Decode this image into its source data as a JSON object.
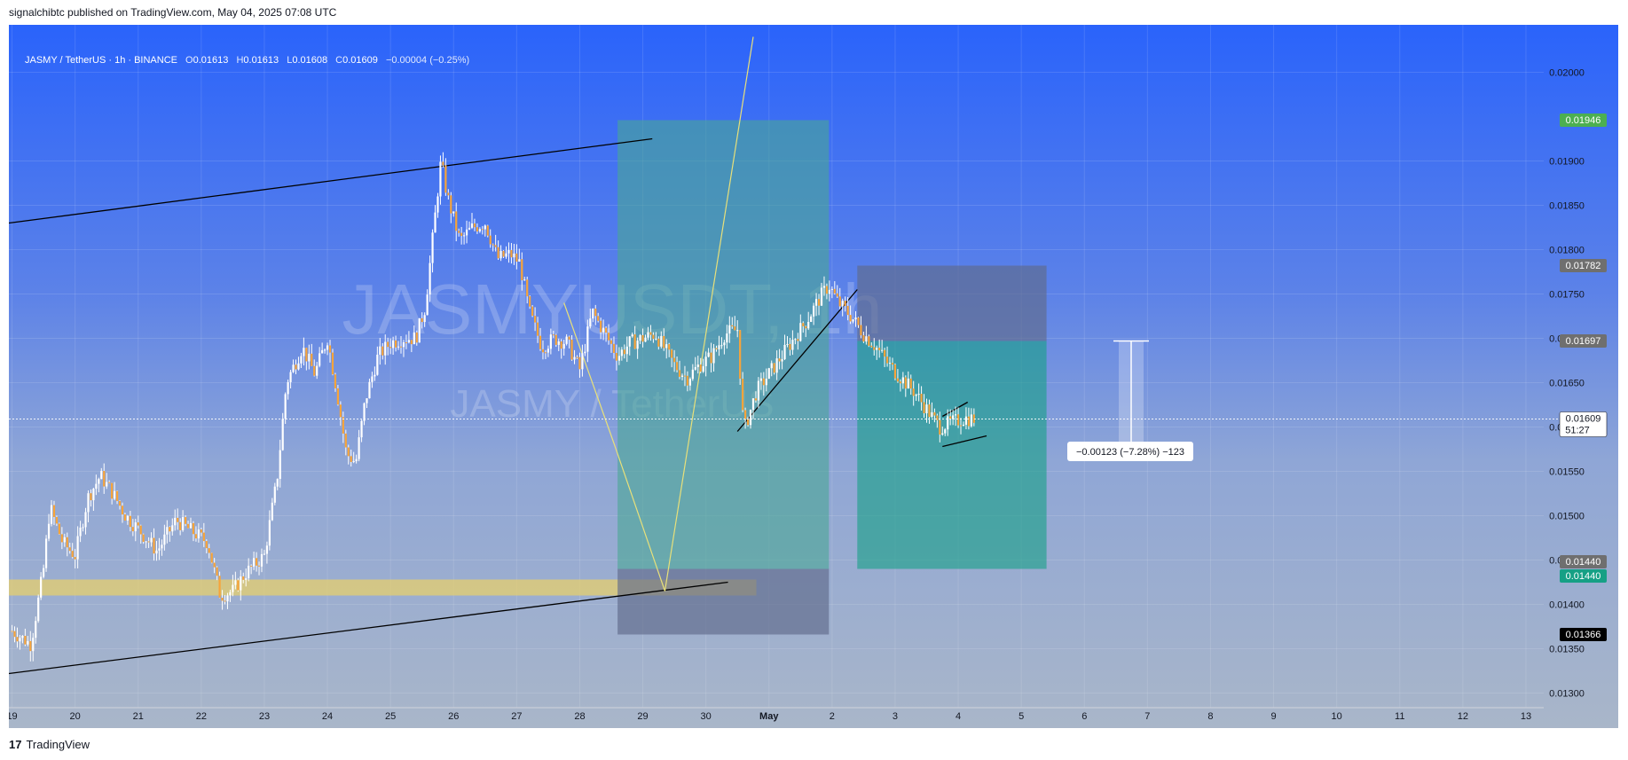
{
  "header": {
    "published": "signalchibtc published on TradingView.com, May 04, 2025 07:08 UTC"
  },
  "legend": {
    "symbol": "JASMY / TetherUS · 1h · BINANCE",
    "o_label": "O",
    "o_value": "0.01613",
    "h_label": "H",
    "h_value": "0.01613",
    "l_label": "L",
    "l_value": "0.01608",
    "c_label": "C",
    "c_value": "0.01609",
    "change": "−0.00004 (−0.25%)"
  },
  "watermark": {
    "line1": "JASMYUSDT, 1h",
    "line2": "JASMY / TetherUS"
  },
  "footer": {
    "logo": "17",
    "brand": "TradingView"
  },
  "colors": {
    "candle": "#f7a43a",
    "wick": "#ffffff",
    "badge_green": "#4caf50",
    "badge_gray": "#6f6f6f",
    "badge_teal": "#16a085",
    "badge_black": "#000000",
    "badge_white": "#ffffff",
    "support_zone": "#e6cf6d",
    "long_zone": "#4aa795",
    "dark_zone": "#606a8a",
    "target_zone": "#16a085",
    "zigzag": "#e8e07a",
    "trendline": "#000000"
  },
  "measure_label": "−0.00123 (−7.28%) −123",
  "chart_data": {
    "type": "candlestick",
    "symbol": "JASMY / TetherUS",
    "interval": "1h",
    "exchange": "BINANCE",
    "y_ticks": [
      "0.01300",
      "0.01350",
      "0.01400",
      "0.01450",
      "0.01500",
      "0.01550",
      "0.01600",
      "0.01650",
      "0.01700",
      "0.01750",
      "0.01800",
      "0.01850",
      "0.01900",
      "0.02000"
    ],
    "y_range": [
      0.01275,
      0.0203
    ],
    "x_ticks": [
      "19",
      "20",
      "21",
      "22",
      "23",
      "24",
      "25",
      "26",
      "27",
      "28",
      "29",
      "30",
      "May",
      "2",
      "3",
      "4",
      "5",
      "6",
      "7",
      "8",
      "9",
      "10",
      "11",
      "12",
      "13"
    ],
    "x_range_days": [
      -0.05,
      24.8
    ],
    "price_badges": [
      {
        "value": "0.01946",
        "style": "green"
      },
      {
        "value": "0.01782",
        "style": "gray"
      },
      {
        "value": "0.01697",
        "style": "gray"
      },
      {
        "value": "0.01609",
        "sub": "51:27",
        "style": "white"
      },
      {
        "value": "0.01440",
        "style": "gray"
      },
      {
        "value": "0.01440",
        "style": "teal"
      },
      {
        "value": "0.01366",
        "style": "black"
      }
    ],
    "series": [
      {
        "t": 0.0,
        "v": 0.0137
      },
      {
        "t": 0.3,
        "v": 0.01355
      },
      {
        "t": 0.5,
        "v": 0.0144
      },
      {
        "t": 0.6,
        "v": 0.0151
      },
      {
        "t": 0.8,
        "v": 0.0147
      },
      {
        "t": 1.0,
        "v": 0.01455
      },
      {
        "t": 1.2,
        "v": 0.0152
      },
      {
        "t": 1.4,
        "v": 0.01545
      },
      {
        "t": 1.6,
        "v": 0.01525
      },
      {
        "t": 1.8,
        "v": 0.015
      },
      {
        "t": 2.0,
        "v": 0.01485
      },
      {
        "t": 2.3,
        "v": 0.0146
      },
      {
        "t": 2.6,
        "v": 0.01495
      },
      {
        "t": 2.9,
        "v": 0.0148
      },
      {
        "t": 3.1,
        "v": 0.0147
      },
      {
        "t": 3.3,
        "v": 0.0141
      },
      {
        "t": 3.5,
        "v": 0.01415
      },
      {
        "t": 3.7,
        "v": 0.01435
      },
      {
        "t": 4.0,
        "v": 0.01455
      },
      {
        "t": 4.2,
        "v": 0.0154
      },
      {
        "t": 4.35,
        "v": 0.0165
      },
      {
        "t": 4.6,
        "v": 0.0169
      },
      {
        "t": 4.8,
        "v": 0.0166
      },
      {
        "t": 5.0,
        "v": 0.017
      },
      {
        "t": 5.15,
        "v": 0.0164
      },
      {
        "t": 5.3,
        "v": 0.0157
      },
      {
        "t": 5.45,
        "v": 0.0156
      },
      {
        "t": 5.6,
        "v": 0.0163
      },
      {
        "t": 5.8,
        "v": 0.0168
      },
      {
        "t": 6.0,
        "v": 0.01695
      },
      {
        "t": 6.2,
        "v": 0.017
      },
      {
        "t": 6.4,
        "v": 0.017
      },
      {
        "t": 6.55,
        "v": 0.01735
      },
      {
        "t": 6.65,
        "v": 0.018
      },
      {
        "t": 6.8,
        "v": 0.019
      },
      {
        "t": 6.9,
        "v": 0.0186
      },
      {
        "t": 7.1,
        "v": 0.0181
      },
      {
        "t": 7.3,
        "v": 0.01825
      },
      {
        "t": 7.5,
        "v": 0.0183
      },
      {
        "t": 7.7,
        "v": 0.0179
      },
      {
        "t": 7.9,
        "v": 0.01795
      },
      {
        "t": 8.05,
        "v": 0.01785
      },
      {
        "t": 8.2,
        "v": 0.0173
      },
      {
        "t": 8.4,
        "v": 0.0169
      },
      {
        "t": 8.6,
        "v": 0.017
      },
      {
        "t": 8.8,
        "v": 0.01695
      },
      {
        "t": 9.0,
        "v": 0.01665
      },
      {
        "t": 9.2,
        "v": 0.0173
      },
      {
        "t": 9.4,
        "v": 0.01705
      },
      {
        "t": 9.6,
        "v": 0.0168
      },
      {
        "t": 9.8,
        "v": 0.01695
      },
      {
        "t": 10.0,
        "v": 0.017
      },
      {
        "t": 10.2,
        "v": 0.01705
      },
      {
        "t": 10.5,
        "v": 0.0167
      },
      {
        "t": 10.7,
        "v": 0.01655
      },
      {
        "t": 10.9,
        "v": 0.0167
      },
      {
        "t": 11.1,
        "v": 0.0168
      },
      {
        "t": 11.3,
        "v": 0.01705
      },
      {
        "t": 11.5,
        "v": 0.0171
      },
      {
        "t": 11.6,
        "v": 0.01595
      },
      {
        "t": 11.8,
        "v": 0.0164
      },
      {
        "t": 12.0,
        "v": 0.0166
      },
      {
        "t": 12.2,
        "v": 0.0168
      },
      {
        "t": 12.4,
        "v": 0.017
      },
      {
        "t": 12.6,
        "v": 0.0172
      },
      {
        "t": 12.8,
        "v": 0.01745
      },
      {
        "t": 12.95,
        "v": 0.0176
      },
      {
        "t": 13.1,
        "v": 0.0174
      },
      {
        "t": 13.3,
        "v": 0.01725
      },
      {
        "t": 13.5,
        "v": 0.01705
      },
      {
        "t": 13.7,
        "v": 0.0169
      },
      {
        "t": 13.9,
        "v": 0.0167
      },
      {
        "t": 14.1,
        "v": 0.01655
      },
      {
        "t": 14.3,
        "v": 0.0164
      },
      {
        "t": 14.5,
        "v": 0.0162
      },
      {
        "t": 14.7,
        "v": 0.016
      },
      {
        "t": 14.9,
        "v": 0.01605
      },
      {
        "t": 15.1,
        "v": 0.0161
      },
      {
        "t": 15.25,
        "v": 0.01609
      }
    ],
    "annotations": [
      {
        "type": "zone",
        "label": "support",
        "color": "support_zone",
        "t0": -0.1,
        "t1": 11.8,
        "y0": 0.0141,
        "y1": 0.01428
      },
      {
        "type": "zone",
        "label": "long-target",
        "color": "long_zone",
        "t0": 9.6,
        "t1": 12.95,
        "y0": 0.0144,
        "y1": 0.01946
      },
      {
        "type": "zone",
        "label": "long-stop",
        "color": "dark_zone",
        "t0": 9.6,
        "t1": 12.95,
        "y0": 0.01366,
        "y1": 0.0144
      },
      {
        "type": "zone",
        "label": "short-stop",
        "color": "dark_zone",
        "t0": 13.4,
        "t1": 16.4,
        "y0": 0.01697,
        "y1": 0.01782
      },
      {
        "type": "zone",
        "label": "short-target",
        "color": "target_zone",
        "t0": 13.4,
        "t1": 16.4,
        "y0": 0.0144,
        "y1": 0.01697
      },
      {
        "type": "line",
        "label": "upper-channel",
        "color": "trendline",
        "t0": -0.05,
        "t1": 10.15,
        "y0": 0.0183,
        "y1": 0.01925
      },
      {
        "type": "line",
        "label": "lower-channel",
        "color": "trendline",
        "t0": -0.05,
        "t1": 11.35,
        "y0": 0.01322,
        "y1": 0.01425
      },
      {
        "type": "polyline",
        "label": "zigzag",
        "color": "zigzag",
        "points": [
          [
            8.75,
            0.0174
          ],
          [
            9.55,
            0.0158
          ],
          [
            10.35,
            0.01415
          ],
          [
            11.75,
            0.0204
          ]
        ]
      },
      {
        "type": "line",
        "label": "rising-line",
        "color": "trendline",
        "t0": 11.5,
        "t1": 13.4,
        "y0": 0.01595,
        "y1": 0.01755
      },
      {
        "type": "line",
        "label": "flag-upper",
        "color": "trendline",
        "t0": 14.75,
        "t1": 15.15,
        "y0": 0.01612,
        "y1": 0.01628
      },
      {
        "type": "line",
        "label": "flag-lower",
        "color": "trendline",
        "t0": 14.75,
        "t1": 15.45,
        "y0": 0.01578,
        "y1": 0.0159
      }
    ]
  }
}
